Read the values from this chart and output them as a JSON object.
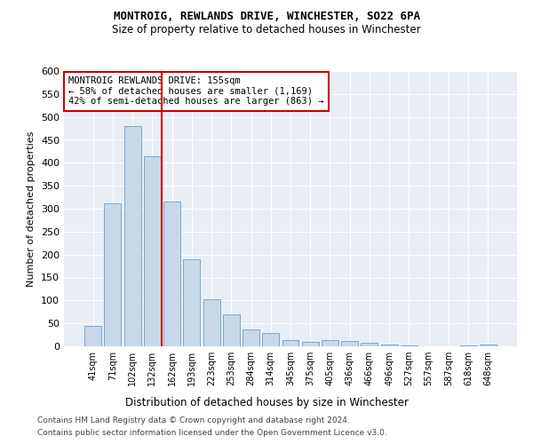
{
  "title_line1": "MONTROIG, REWLANDS DRIVE, WINCHESTER, SO22 6PA",
  "title_line2": "Size of property relative to detached houses in Winchester",
  "xlabel": "Distribution of detached houses by size in Winchester",
  "ylabel": "Number of detached properties",
  "categories": [
    "41sqm",
    "71sqm",
    "102sqm",
    "132sqm",
    "162sqm",
    "193sqm",
    "223sqm",
    "253sqm",
    "284sqm",
    "314sqm",
    "345sqm",
    "375sqm",
    "405sqm",
    "436sqm",
    "466sqm",
    "496sqm",
    "527sqm",
    "557sqm",
    "587sqm",
    "618sqm",
    "648sqm"
  ],
  "values": [
    45,
    312,
    480,
    415,
    315,
    190,
    103,
    70,
    37,
    30,
    13,
    10,
    13,
    12,
    7,
    4,
    1,
    0,
    0,
    1,
    4
  ],
  "bar_color": "#c8d8e8",
  "bar_edge_color": "#7aa8c8",
  "vline_color": "#cc0000",
  "vline_index": 3.5,
  "annotation_title": "MONTROIG REWLANDS DRIVE: 155sqm",
  "annotation_line1": "← 58% of detached houses are smaller (1,169)",
  "annotation_line2": "42% of semi-detached houses are larger (863) →",
  "annotation_box_edge": "#cc0000",
  "ylim": [
    0,
    600
  ],
  "yticks": [
    0,
    50,
    100,
    150,
    200,
    250,
    300,
    350,
    400,
    450,
    500,
    550,
    600
  ],
  "footer_line1": "Contains HM Land Registry data © Crown copyright and database right 2024.",
  "footer_line2": "Contains public sector information licensed under the Open Government Licence v3.0.",
  "bg_color": "#e8eef4"
}
